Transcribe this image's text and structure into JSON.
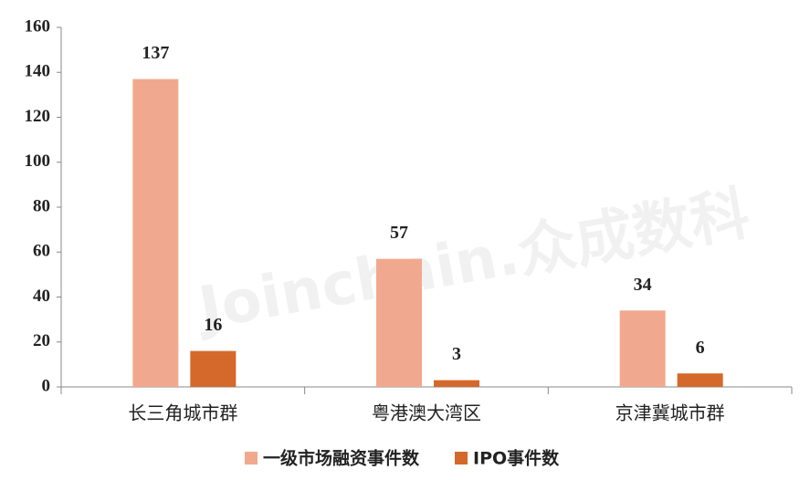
{
  "chart_data": {
    "type": "bar",
    "categories": [
      "长三角城市群",
      "粤港澳大湾区",
      "京津冀城市群"
    ],
    "series": [
      {
        "name": "一级市场融资事件数",
        "color": "#f0a98f",
        "values": [
          137,
          57,
          34
        ]
      },
      {
        "name": "IPO事件数",
        "color": "#d4692b",
        "values": [
          16,
          3,
          6
        ]
      }
    ],
    "ylim": [
      0,
      160
    ],
    "yticks": [
      0,
      20,
      40,
      60,
      80,
      100,
      120,
      140,
      160
    ],
    "legend": "bottom",
    "watermark": "Joinchain.众成数科"
  }
}
